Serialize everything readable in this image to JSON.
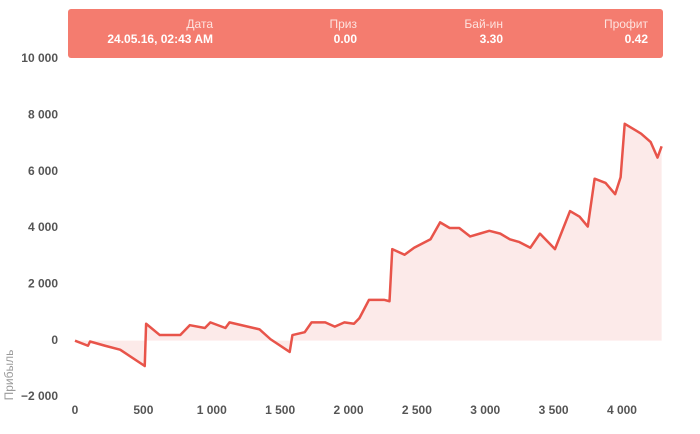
{
  "chart_data": {
    "type": "line",
    "y_label": "Прибыль",
    "x": [
      0,
      95,
      110,
      220,
      330,
      510,
      520,
      620,
      770,
      840,
      950,
      990,
      1100,
      1130,
      1350,
      1430,
      1570,
      1590,
      1680,
      1730,
      1830,
      1900,
      1970,
      2040,
      2080,
      2150,
      2260,
      2300,
      2320,
      2410,
      2480,
      2600,
      2670,
      2740,
      2810,
      2890,
      2960,
      3030,
      3110,
      3180,
      3250,
      3330,
      3400,
      3510,
      3620,
      3690,
      3750,
      3800,
      3880,
      3950,
      3990,
      4020,
      4140,
      4210,
      4260,
      4290
    ],
    "series": [
      {
        "color": "#e8544a",
        "values": [
          0,
          -180,
          -30,
          -180,
          -320,
          -900,
          600,
          200,
          200,
          550,
          450,
          650,
          450,
          650,
          400,
          50,
          -400,
          200,
          300,
          650,
          650,
          500,
          650,
          600,
          800,
          1450,
          1450,
          1400,
          3250,
          3050,
          3300,
          3600,
          4200,
          4000,
          4000,
          3700,
          3800,
          3900,
          3800,
          3600,
          3500,
          3300,
          3800,
          3250,
          4600,
          4400,
          4050,
          5750,
          5600,
          5200,
          5800,
          7700,
          7350,
          7050,
          6500,
          6900
        ]
      }
    ],
    "xlim": [
      0,
      4300
    ],
    "ylim": [
      -2000,
      10000
    ],
    "xticks": [
      0,
      500,
      {
        "value": 1000,
        "label": "1 000"
      },
      {
        "value": 1500,
        "label": "1 500"
      },
      {
        "value": 2000,
        "label": "2 000"
      },
      {
        "value": 2500,
        "label": "2 500"
      },
      {
        "value": 3000,
        "label": "3 000"
      },
      {
        "value": 3500,
        "label": "3 500"
      },
      {
        "value": 4000,
        "label": "4 000"
      }
    ],
    "yticks": [
      {
        "value": -2000,
        "label": "−2 000"
      },
      0,
      {
        "value": 2000,
        "label": "2 000"
      },
      {
        "value": 4000,
        "label": "4 000"
      },
      {
        "value": 6000,
        "label": "6 000"
      },
      {
        "value": 8000,
        "label": "8 000"
      },
      {
        "value": 10000,
        "label": "10 000"
      }
    ],
    "tooltip": [
      {
        "label": "Дата",
        "value": "24.05.16, 02:43 AM"
      },
      {
        "label": "Приз",
        "value": "0.00"
      },
      {
        "label": "Бай-ин",
        "value": "3.30"
      },
      {
        "label": "Профит",
        "value": "0.42"
      }
    ]
  }
}
